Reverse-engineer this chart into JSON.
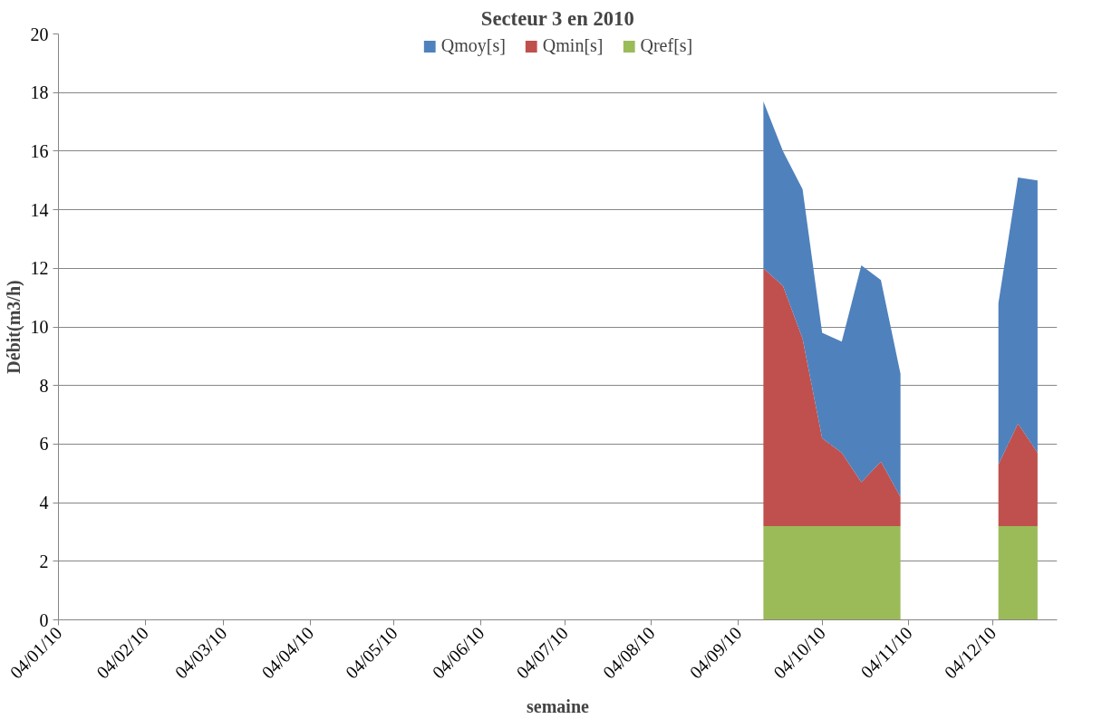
{
  "chart_data": {
    "type": "area",
    "stacked": true,
    "title": "Secteur 3 en 2010",
    "xlabel": "semaine",
    "ylabel": "Débit(m3/h)",
    "x": [
      "2010-09-13",
      "2010-09-20",
      "2010-09-27",
      "2010-10-04",
      "2010-10-11",
      "2010-10-18",
      "2010-10-25",
      "2010-11-01",
      "2010-11-08",
      "2010-11-15",
      "2010-11-22",
      "2010-11-29",
      "2010-12-06",
      "2010-12-13",
      "2010-12-20"
    ],
    "series": [
      {
        "name": "Qref[s]",
        "color": "#9bbb59",
        "values": [
          3.2,
          3.2,
          3.2,
          3.2,
          3.2,
          3.2,
          3.2,
          3.2,
          null,
          null,
          null,
          null,
          3.2,
          3.2,
          3.2
        ]
      },
      {
        "name": "Qmin[s]",
        "color": "#c0504d",
        "values": [
          8.8,
          8.2,
          6.4,
          3.0,
          2.5,
          1.5,
          2.2,
          1.0,
          null,
          null,
          null,
          null,
          2.1,
          3.5,
          2.5
        ]
      },
      {
        "name": "Qmoy[s]",
        "color": "#4f81bd",
        "values": [
          5.7,
          4.6,
          5.1,
          3.6,
          3.8,
          7.4,
          6.2,
          4.2,
          null,
          null,
          null,
          null,
          5.5,
          8.4,
          9.3
        ]
      }
    ],
    "xlim": [
      "2010-01-04",
      "2010-12-27"
    ],
    "xticks": [
      {
        "value": "2010-01-04",
        "label": "04/01/10"
      },
      {
        "value": "2010-02-04",
        "label": "04/02/10"
      },
      {
        "value": "2010-03-04",
        "label": "04/03/10"
      },
      {
        "value": "2010-04-04",
        "label": "04/04/10"
      },
      {
        "value": "2010-05-04",
        "label": "04/05/10"
      },
      {
        "value": "2010-06-04",
        "label": "04/06/10"
      },
      {
        "value": "2010-07-04",
        "label": "04/07/10"
      },
      {
        "value": "2010-08-04",
        "label": "04/08/10"
      },
      {
        "value": "2010-09-04",
        "label": "04/09/10"
      },
      {
        "value": "2010-10-04",
        "label": "04/10/10"
      },
      {
        "value": "2010-11-04",
        "label": "04/11/10"
      },
      {
        "value": "2010-12-04",
        "label": "04/12/10"
      }
    ],
    "ylim": [
      0,
      20
    ],
    "yticks": [
      0,
      2,
      4,
      6,
      8,
      10,
      12,
      14,
      16,
      18,
      20
    ],
    "grid": "y",
    "legend": "top"
  }
}
